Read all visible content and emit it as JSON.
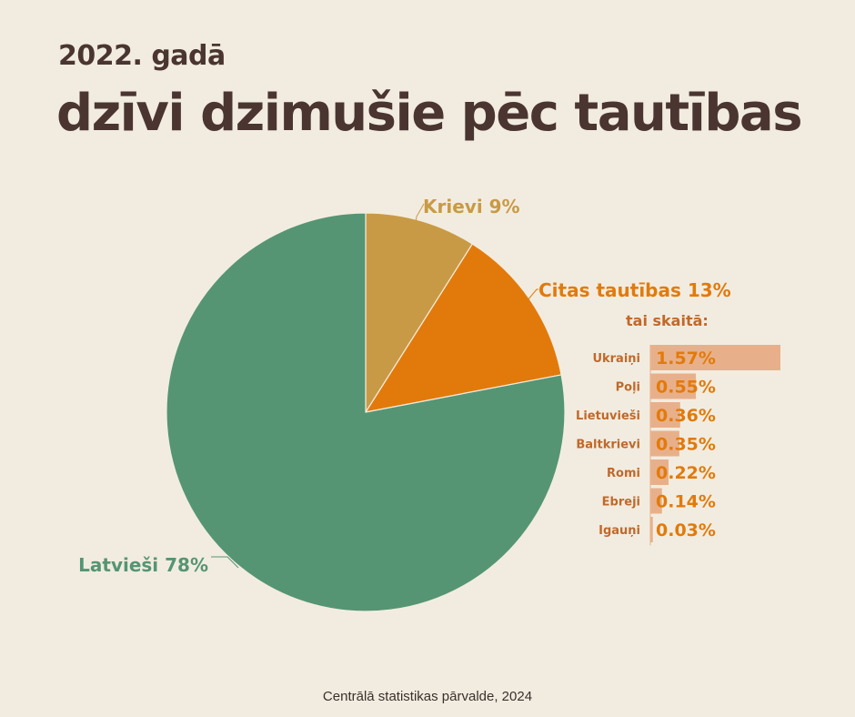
{
  "header": {
    "subtitle": "2022. gadā",
    "title": "dzīvi dzimušie pēc tautības"
  },
  "colors": {
    "background": "#f2ece0",
    "latviesi": "#559573",
    "krievi": "#c99a45",
    "citas": "#e27a0b",
    "sub_bar": "#e8b08a",
    "sub_value": "#e27a0b",
    "sub_label": "#c0692a",
    "title": "#4a3530"
  },
  "chart_data": [
    {
      "type": "pie",
      "slices": [
        {
          "label": "Krievi 9%",
          "name": "Krievi",
          "value": 9,
          "color": "#c99a45"
        },
        {
          "label": "Citas tautības 13%",
          "name": "Citas tautības",
          "value": 13,
          "color": "#e27a0b"
        },
        {
          "label": "Latvieši 78%",
          "name": "Latvieši",
          "value": 78,
          "color": "#559573"
        }
      ]
    },
    {
      "type": "bar",
      "heading": "tai skaitā:",
      "categories": [
        "Ukraiņi",
        "Poļi",
        "Lietuvieši",
        "Baltkrievi",
        "Romi",
        "Ebreji",
        "Igauņi"
      ],
      "values": [
        1.57,
        0.55,
        0.36,
        0.35,
        0.22,
        0.14,
        0.03
      ],
      "value_labels": [
        "1.57%",
        "0.55%",
        "0.36%",
        "0.35%",
        "0.22%",
        "0.14%",
        "0.03%"
      ]
    }
  ],
  "footer": {
    "source": "Centrālā statistikas pārvalde, 2024"
  }
}
